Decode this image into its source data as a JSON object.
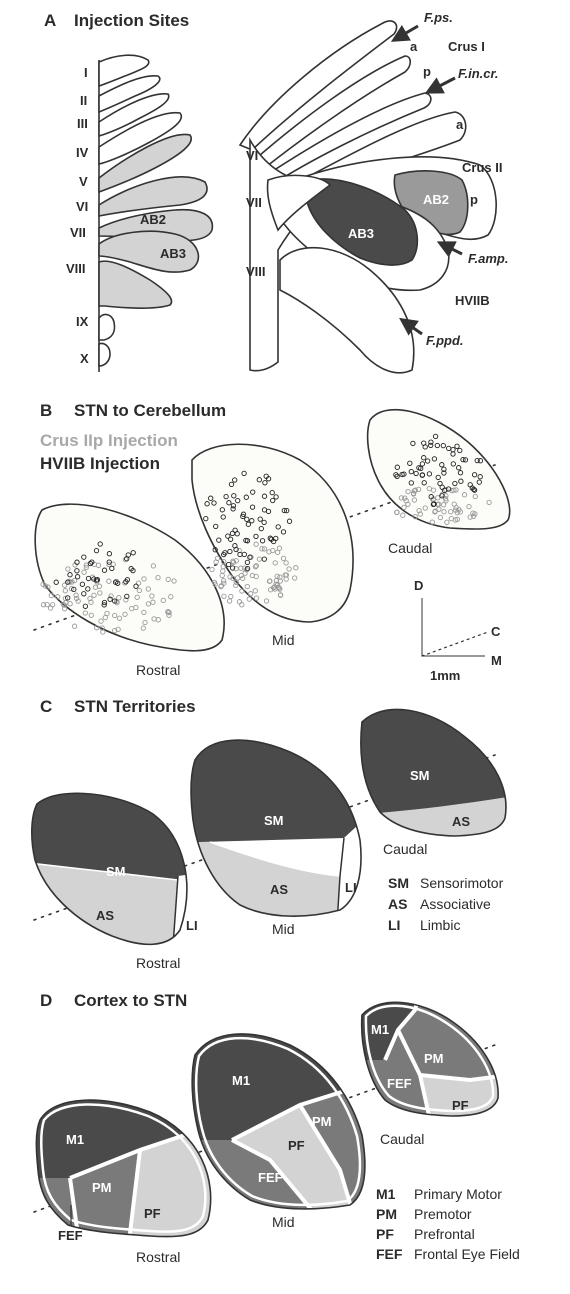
{
  "panel_a": {
    "letter": "A",
    "title": "Injection Sites",
    "lobule_labels": [
      "I",
      "II",
      "III",
      "IV",
      "V",
      "VI",
      "VII",
      "VIII",
      "IX",
      "X"
    ],
    "left_ab2": "AB2",
    "left_ab3": "AB3",
    "right_labels": {
      "vi": "VI",
      "vii": "VII",
      "viii": "VIII",
      "a1": "a",
      "crus1": "Crus I",
      "p1": "p",
      "a2": "a",
      "crus2": "Crus II",
      "p2": "p",
      "hviib": "HVIIB",
      "ab2": "AB2",
      "ab3": "AB3"
    },
    "fissures": {
      "fps": "F.ps.",
      "fincr": "F.in.cr.",
      "famp": "F.amp.",
      "fppd": "F.ppd."
    }
  },
  "panel_b": {
    "letter": "B",
    "title": "STN to Cerebellum",
    "legend_crus": "Crus IIp Injection",
    "legend_hviib": "HVIIB Injection",
    "rostral": "Rostral",
    "mid": "Mid",
    "caudal": "Caudal",
    "axes": {
      "d": "D",
      "c": "C",
      "m": "M",
      "scale": "1mm"
    }
  },
  "panel_c": {
    "letter": "C",
    "title": "STN Territories",
    "rostral": "Rostral",
    "mid": "Mid",
    "caudal": "Caudal",
    "regions": {
      "sm": "SM",
      "as": "AS",
      "li": "LI"
    },
    "legend": [
      {
        "abbr": "SM",
        "text": "Sensorimotor"
      },
      {
        "abbr": "AS",
        "text": "Associative"
      },
      {
        "abbr": "LI",
        "text": "Limbic"
      }
    ]
  },
  "panel_d": {
    "letter": "D",
    "title": "Cortex to STN",
    "rostral": "Rostral",
    "mid": "Mid",
    "caudal": "Caudal",
    "regions": {
      "m1": "M1",
      "pm": "PM",
      "pf": "PF",
      "fef": "FEF"
    },
    "legend": [
      {
        "abbr": "M1",
        "text": "Primary Motor"
      },
      {
        "abbr": "PM",
        "text": "Premotor"
      },
      {
        "abbr": "PF",
        "text": "Prefrontal"
      },
      {
        "abbr": "FEF",
        "text": "Frontal Eye Field"
      }
    ]
  },
  "colors": {
    "dark": "#4a4a4a",
    "mid_gray": "#7a7a7a",
    "light": "#d3d3d3",
    "medium": "#9a9a9a",
    "outline": "#333333"
  }
}
